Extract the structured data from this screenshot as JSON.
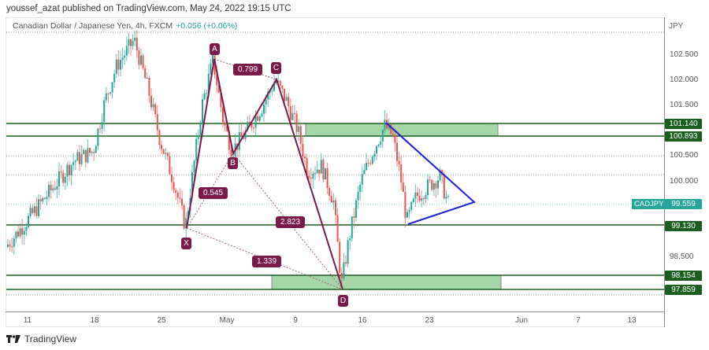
{
  "header": {
    "published": "youssef_azat published on TradingView.com, May 24, 2022 19:15 UTC"
  },
  "chart": {
    "title": "Canadian Dollar / Japanese Yen, 4h, FXCM",
    "change": "+0.056 (+0.06%)",
    "currency": "JPY",
    "symbol": "CADJPY"
  },
  "price_axis": {
    "ticks": [
      "102.500",
      "102.000",
      "101.500",
      "100.500",
      "100.000",
      "98.500"
    ]
  },
  "price_labels": {
    "level_1": "101.140",
    "level_2": "100.893",
    "current": "99.559",
    "level_3": "99.130",
    "level_4": "98.154",
    "level_5": "97.859"
  },
  "time_axis": {
    "ticks": [
      "11",
      "18",
      "25",
      "May",
      "9",
      "16",
      "23",
      "Jun",
      "7",
      "13"
    ]
  },
  "pattern": {
    "points": {
      "X": "X",
      "A": "A",
      "B": "B",
      "C": "C",
      "D": "D"
    },
    "ratios": {
      "XAB": "0.545",
      "ABC": "0.799",
      "BCD": "2.823",
      "XAD": "1.339"
    }
  },
  "footer": {
    "brand": "TradingView"
  },
  "colors": {
    "up": "#26a69a",
    "down": "#ef5350",
    "level_line": "#1b5e20",
    "zone_fill": "#a5d6a7",
    "pattern": "#7a1a4a",
    "triangle": "#1f1fd6",
    "current_price": "#26a69a"
  },
  "chart_data": {
    "type": "candlestick",
    "title": "Canadian Dollar / Japanese Yen, 4h, FXCM",
    "symbol": "CADJPY",
    "timeframe": "4h",
    "ylabel": "JPY",
    "ylim": [
      97.6,
      103.0
    ],
    "x_ticks": [
      "11",
      "18",
      "25",
      "May",
      "9",
      "16",
      "23",
      "Jun",
      "7",
      "13"
    ],
    "y_ticks": [
      102.5,
      102.0,
      101.5,
      100.5,
      100.0,
      98.5
    ],
    "last_price": 99.559,
    "change": 0.056,
    "change_pct": 0.06,
    "horizontal_levels": [
      101.14,
      100.893,
      99.13,
      98.154,
      97.859
    ],
    "zones": [
      {
        "top": 101.14,
        "bottom": 100.893,
        "from": "May 9",
        "to": "May 28"
      },
      {
        "top": 98.154,
        "bottom": 97.859,
        "from": "May 7",
        "to": "May 28"
      }
    ],
    "harmonic_pattern": {
      "points": [
        {
          "label": "X",
          "date": "Apr 27",
          "price": 99.05
        },
        {
          "label": "A",
          "date": "Apr 29",
          "price": 102.45
        },
        {
          "label": "B",
          "date": "May 2",
          "price": 100.6
        },
        {
          "label": "C",
          "date": "May 5",
          "price": 102.05
        },
        {
          "label": "D",
          "date": "May 12",
          "price": 97.86
        }
      ],
      "ratios": {
        "XAB": 0.545,
        "ABC": 0.799,
        "BCD": 2.823,
        "XAD": 1.339
      }
    },
    "triangle": {
      "upper": [
        {
          "date": "May 17",
          "price": 101.15
        },
        {
          "date": "May 26",
          "price": 99.6
        }
      ],
      "lower": [
        {
          "date": "May 19",
          "price": 99.13
        },
        {
          "date": "May 26",
          "price": 99.6
        }
      ]
    },
    "approx_path": [
      {
        "date": "Apr 7",
        "price": 98.7
      },
      {
        "date": "Apr 11",
        "price": 99.3
      },
      {
        "date": "Apr 14",
        "price": 99.7
      },
      {
        "date": "Apr 18",
        "price": 100.4
      },
      {
        "date": "Apr 20",
        "price": 101.5
      },
      {
        "date": "Apr 22",
        "price": 102.8
      },
      {
        "date": "Apr 25",
        "price": 100.5
      },
      {
        "date": "Apr 27",
        "price": 99.05
      },
      {
        "date": "Apr 29",
        "price": 102.45
      },
      {
        "date": "May 2",
        "price": 100.6
      },
      {
        "date": "May 5",
        "price": 102.05
      },
      {
        "date": "May 9",
        "price": 100.0
      },
      {
        "date": "May 12",
        "price": 97.86
      },
      {
        "date": "May 17",
        "price": 101.15
      },
      {
        "date": "May 19",
        "price": 99.13
      },
      {
        "date": "May 24",
        "price": 99.56
      }
    ]
  }
}
